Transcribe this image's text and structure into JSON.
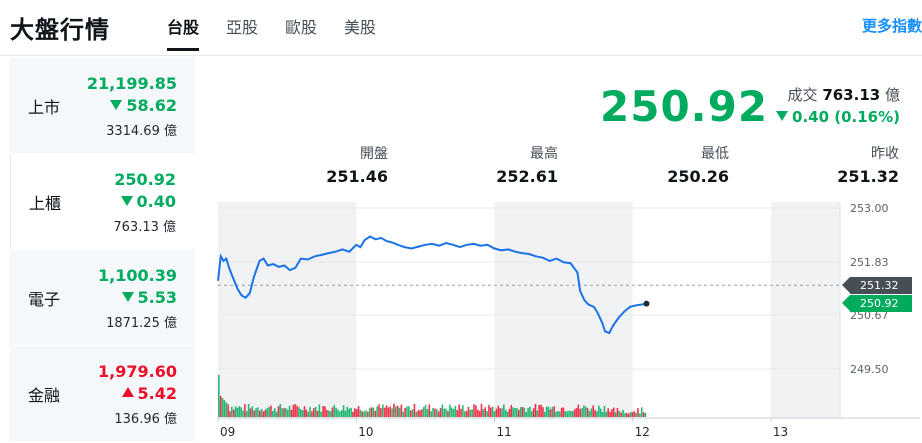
{
  "header": {
    "title": "大盤行情",
    "tabs": [
      {
        "label": "台股",
        "active": true
      },
      {
        "label": "亞股",
        "active": false
      },
      {
        "label": "歐股",
        "active": false
      },
      {
        "label": "美股",
        "active": false
      }
    ],
    "more_label": "更多指數"
  },
  "sidebar": {
    "items": [
      {
        "name": "上市",
        "price": "21,199.85",
        "change": "58.62",
        "direction": "down",
        "volume": "3314.69 億"
      },
      {
        "name": "上櫃",
        "price": "250.92",
        "change": "0.40",
        "direction": "down",
        "volume": "763.13 億"
      },
      {
        "name": "電子",
        "price": "1,100.39",
        "change": "5.53",
        "direction": "down",
        "volume": "1871.25 億"
      },
      {
        "name": "金融",
        "price": "1,979.60",
        "change": "5.42",
        "direction": "up",
        "volume": "136.96 億"
      }
    ]
  },
  "summary": {
    "price": "250.92",
    "turnover_label": "成交",
    "turnover_value": "763.13",
    "turnover_unit": "億",
    "change": "0.40 (0.16%)",
    "stats": [
      {
        "label": "開盤",
        "value": "251.46"
      },
      {
        "label": "最高",
        "value": "252.61"
      },
      {
        "label": "最低",
        "value": "250.26"
      },
      {
        "label": "昨收",
        "value": "251.32"
      }
    ]
  },
  "colors": {
    "down": "#00ab5e",
    "up": "#eb0f29",
    "line": "#1a73e8",
    "accent": "#188fff"
  },
  "chart_data": {
    "type": "line",
    "x_ticks": [
      "09",
      "10",
      "11",
      "12",
      "13"
    ],
    "y_ticks": [
      "253.00",
      "251.83",
      "250.67",
      "249.50"
    ],
    "ylim": [
      249.2,
      253.3
    ],
    "prev_close": 251.32,
    "prev_close_label": "251.32",
    "current_label": "250.92",
    "points": [
      [
        9.0,
        251.42
      ],
      [
        9.02,
        251.95
      ],
      [
        9.04,
        251.85
      ],
      [
        9.06,
        251.9
      ],
      [
        9.08,
        251.7
      ],
      [
        9.1,
        251.55
      ],
      [
        9.12,
        251.4
      ],
      [
        9.14,
        251.25
      ],
      [
        9.17,
        251.1
      ],
      [
        9.2,
        251.05
      ],
      [
        9.23,
        251.15
      ],
      [
        9.26,
        251.5
      ],
      [
        9.3,
        251.85
      ],
      [
        9.33,
        251.9
      ],
      [
        9.36,
        251.75
      ],
      [
        9.4,
        251.78
      ],
      [
        9.44,
        251.72
      ],
      [
        9.48,
        251.75
      ],
      [
        9.52,
        251.65
      ],
      [
        9.56,
        251.7
      ],
      [
        9.6,
        251.9
      ],
      [
        9.65,
        251.88
      ],
      [
        9.7,
        251.95
      ],
      [
        9.75,
        251.98
      ],
      [
        9.8,
        252.02
      ],
      [
        9.85,
        252.05
      ],
      [
        9.9,
        252.1
      ],
      [
        9.95,
        252.05
      ],
      [
        10.0,
        252.2
      ],
      [
        10.03,
        252.15
      ],
      [
        10.06,
        252.3
      ],
      [
        10.1,
        252.38
      ],
      [
        10.14,
        252.32
      ],
      [
        10.18,
        252.35
      ],
      [
        10.22,
        252.28
      ],
      [
        10.26,
        252.25
      ],
      [
        10.3,
        252.2
      ],
      [
        10.35,
        252.15
      ],
      [
        10.4,
        252.12
      ],
      [
        10.45,
        252.16
      ],
      [
        10.5,
        252.2
      ],
      [
        10.55,
        252.22
      ],
      [
        10.6,
        252.18
      ],
      [
        10.65,
        252.24
      ],
      [
        10.7,
        252.2
      ],
      [
        10.75,
        252.15
      ],
      [
        10.8,
        252.2
      ],
      [
        10.85,
        252.22
      ],
      [
        10.9,
        252.18
      ],
      [
        10.95,
        252.2
      ],
      [
        11.0,
        252.12
      ],
      [
        11.05,
        252.08
      ],
      [
        11.1,
        252.1
      ],
      [
        11.15,
        252.05
      ],
      [
        11.2,
        252.02
      ],
      [
        11.25,
        252.0
      ],
      [
        11.3,
        251.95
      ],
      [
        11.35,
        251.92
      ],
      [
        11.4,
        251.85
      ],
      [
        11.45,
        251.9
      ],
      [
        11.5,
        251.82
      ],
      [
        11.55,
        251.8
      ],
      [
        11.6,
        251.6
      ],
      [
        11.62,
        251.2
      ],
      [
        11.65,
        251.0
      ],
      [
        11.68,
        250.9
      ],
      [
        11.72,
        250.85
      ],
      [
        11.75,
        250.7
      ],
      [
        11.78,
        250.5
      ],
      [
        11.8,
        250.32
      ],
      [
        11.83,
        250.28
      ],
      [
        11.86,
        250.45
      ],
      [
        11.9,
        250.62
      ],
      [
        11.94,
        250.75
      ],
      [
        11.98,
        250.85
      ],
      [
        12.02,
        250.88
      ],
      [
        12.06,
        250.9
      ],
      [
        12.1,
        250.92
      ]
    ],
    "volume": {
      "up_color": "#eb0f29",
      "down_color": "#00ab5e",
      "max": 100
    }
  }
}
